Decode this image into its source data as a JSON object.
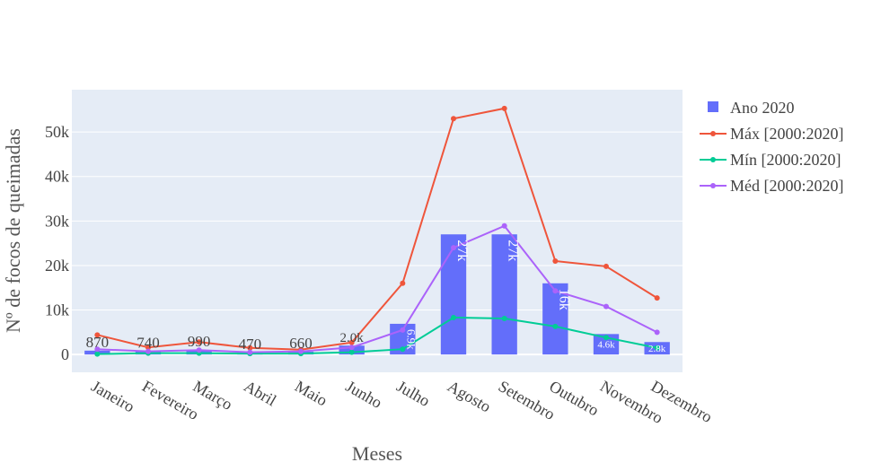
{
  "chart_data": {
    "type": "bar",
    "xlabel": "Meses",
    "ylabel": "Nº de focos de queimadas",
    "ylim": [
      -4000,
      59500
    ],
    "yticks": [
      0,
      10000,
      20000,
      30000,
      40000,
      50000
    ],
    "ytick_labels": [
      "0",
      "10k",
      "20k",
      "30k",
      "40k",
      "50k"
    ],
    "grid": true,
    "legend_position": "right",
    "categories": [
      "Janeiro",
      "Fevereiro",
      "Março",
      "Abril",
      "Maio",
      "Junho",
      "Julho",
      "Agosto",
      "Setembro",
      "Outubro",
      "Novembro",
      "Dezembro"
    ],
    "series": [
      {
        "name": "Ano 2020",
        "kind": "bar",
        "color": "#636efa",
        "values": [
          870,
          740,
          990,
          470,
          660,
          2000,
          6900,
          27000,
          27000,
          16000,
          4600,
          2800
        ],
        "labels": [
          "870",
          "740",
          "990",
          "470",
          "660",
          "2.0k",
          "6.9k",
          "27k",
          "27k",
          "16k",
          "4.6k",
          "2.8k"
        ]
      },
      {
        "name": "Máx [2000:2020]",
        "kind": "line",
        "color": "#ef553b",
        "values": [
          4400,
          1600,
          2800,
          1500,
          1100,
          2700,
          16000,
          53000,
          55300,
          21000,
          19800,
          12700
        ]
      },
      {
        "name": "Mín [2000:2020]",
        "kind": "line",
        "color": "#00cc96",
        "values": [
          100,
          300,
          300,
          200,
          200,
          500,
          1200,
          8300,
          8100,
          6300,
          3800,
          1500
        ]
      },
      {
        "name": "Méd [2000:2020]",
        "kind": "line",
        "color": "#ab63fa",
        "values": [
          1200,
          700,
          1000,
          500,
          700,
          1600,
          5500,
          24000,
          28900,
          14300,
          10800,
          5000
        ]
      }
    ]
  }
}
